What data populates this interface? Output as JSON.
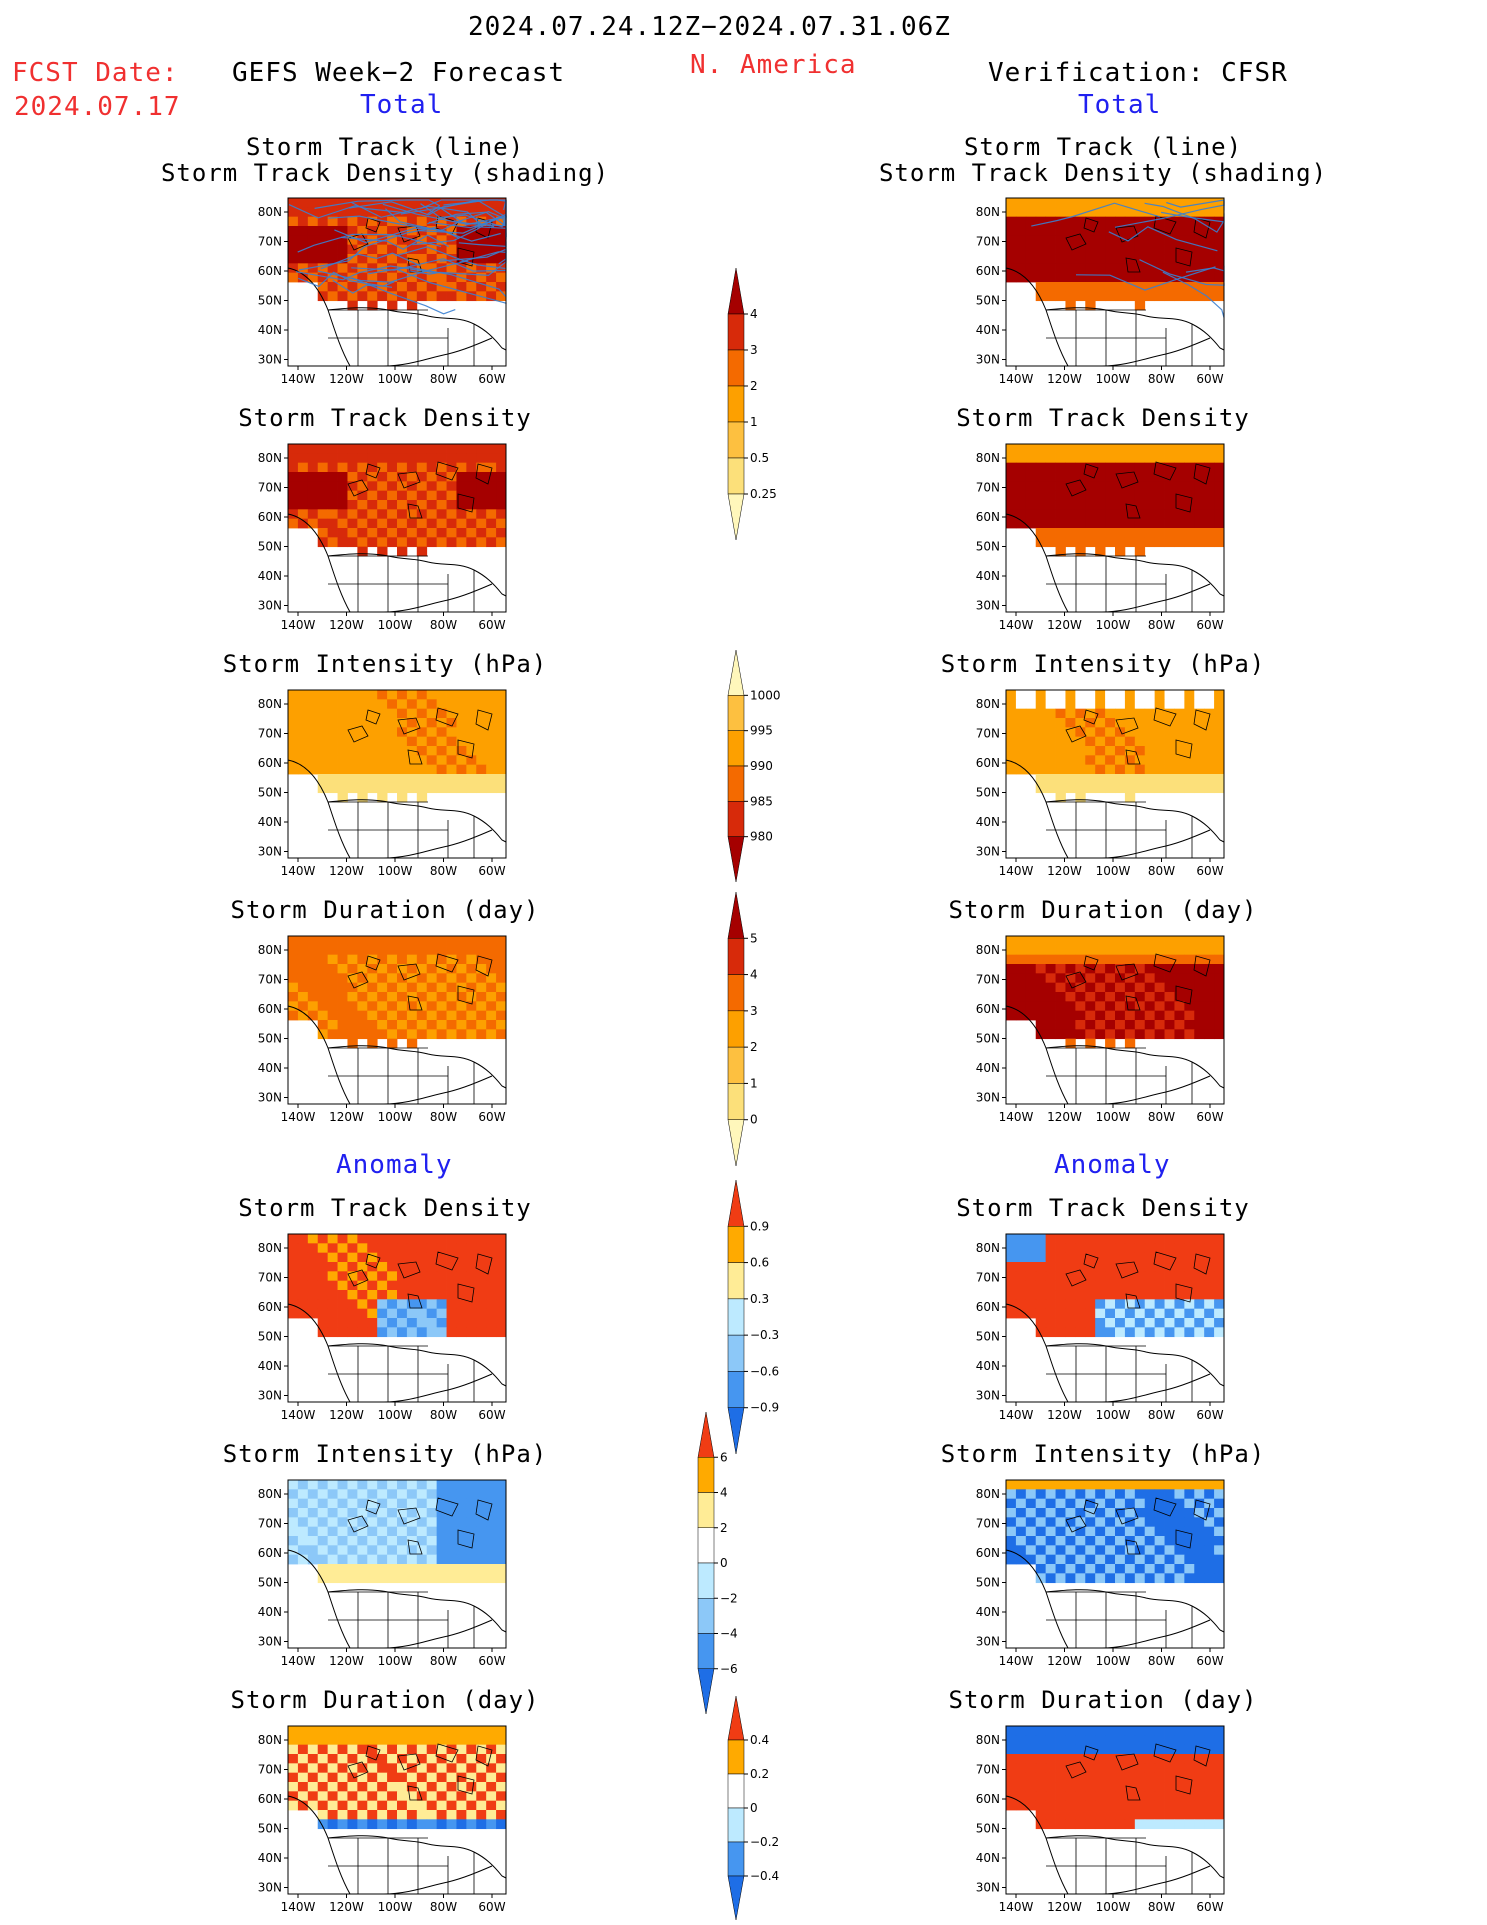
{
  "header": {
    "period": "2024.07.24.12Z−2024.07.31.06Z",
    "region": "N. America",
    "fcst_label": "FCST Date:",
    "fcst_date": "2024.07.17",
    "left_title": "GEFS Week−2 Forecast",
    "right_title": "Verification: CFSR",
    "left_total": "Total",
    "right_total": "Total",
    "left_anomaly": "Anomaly",
    "right_anomaly": "Anomaly"
  },
  "panel_titles": {
    "track_line": "Storm Track (line)",
    "track_shading": "Storm Track Density (shading)",
    "density": "Storm Track Density",
    "intensity": "Storm Intensity (hPa)",
    "duration": "Storm Duration (day)"
  },
  "axes": {
    "lat_ticks": [
      "80N",
      "70N",
      "60N",
      "50N",
      "40N",
      "30N"
    ],
    "lon_ticks": [
      "140W",
      "120W",
      "100W",
      "80W",
      "60W"
    ]
  },
  "colors": {
    "bg": "#ffffff",
    "red_text": "#f03030",
    "blue_text": "#2020f0",
    "storm_track_lines": "#3a7fd0",
    "warm_scale": [
      "#fff7bb",
      "#fce07a",
      "#fdc040",
      "#fda000",
      "#f46a00",
      "#d72a0a",
      "#a50000"
    ],
    "anom_scale": [
      "#1e6ee6",
      "#4696f0",
      "#8cc8f8",
      "#bdeaff",
      "#ffffff",
      "#ffec96",
      "#ffaa00",
      "#f03c14"
    ]
  },
  "chart_data": [
    {
      "type": "heatmap",
      "id": "fcst-track",
      "title": "Storm Track (line) / Storm Track Density (shading)",
      "kind": "density"
    },
    {
      "type": "heatmap",
      "id": "cfsr-track",
      "title": "Storm Track (line) / Storm Track Density (shading)",
      "kind": "density"
    },
    {
      "type": "heatmap",
      "id": "fcst-density",
      "title": "Storm Track Density",
      "kind": "density"
    },
    {
      "type": "heatmap",
      "id": "cfsr-density",
      "title": "Storm Track Density",
      "kind": "density"
    },
    {
      "type": "heatmap",
      "id": "fcst-intensity",
      "title": "Storm Intensity (hPa)",
      "kind": "intensity"
    },
    {
      "type": "heatmap",
      "id": "cfsr-intensity",
      "title": "Storm Intensity (hPa)",
      "kind": "intensity"
    },
    {
      "type": "heatmap",
      "id": "fcst-duration",
      "title": "Storm Duration (day)",
      "kind": "duration"
    },
    {
      "type": "heatmap",
      "id": "cfsr-duration",
      "title": "Storm Duration (day)",
      "kind": "duration"
    },
    {
      "type": "heatmap",
      "id": "fcst-density-anom",
      "title": "Storm Track Density",
      "kind": "anomaly"
    },
    {
      "type": "heatmap",
      "id": "cfsr-density-anom",
      "title": "Storm Track Density",
      "kind": "anomaly"
    },
    {
      "type": "heatmap",
      "id": "fcst-intensity-anom",
      "title": "Storm Intensity (hPa)",
      "kind": "anomaly"
    },
    {
      "type": "heatmap",
      "id": "cfsr-intensity-anom",
      "title": "Storm Intensity (hPa)",
      "kind": "anomaly"
    },
    {
      "type": "heatmap",
      "id": "fcst-duration-anom",
      "title": "Storm Duration (day)",
      "kind": "anomaly"
    },
    {
      "type": "heatmap",
      "id": "cfsr-duration-anom",
      "title": "Storm Duration (day)",
      "kind": "anomaly"
    }
  ],
  "colorbars": [
    {
      "id": "density",
      "labels": [
        "4",
        "3",
        "2",
        "1",
        "0.5",
        "0.25"
      ]
    },
    {
      "id": "intensity",
      "labels": [
        "1000",
        "995",
        "990",
        "985",
        "980"
      ]
    },
    {
      "id": "duration",
      "labels": [
        "5",
        "4",
        "3",
        "2",
        "1",
        "0"
      ]
    },
    {
      "id": "density-anom",
      "labels": [
        "0.9",
        "0.6",
        "0.3",
        "−0.3",
        "−0.6",
        "−0.9"
      ]
    },
    {
      "id": "intensity-anom",
      "labels": [
        "6",
        "4",
        "2",
        "0",
        "−2",
        "−4",
        "−6"
      ]
    },
    {
      "id": "duration-anom",
      "labels": [
        "0.4",
        "0.2",
        "0",
        "−0.2",
        "−0.4"
      ]
    }
  ]
}
